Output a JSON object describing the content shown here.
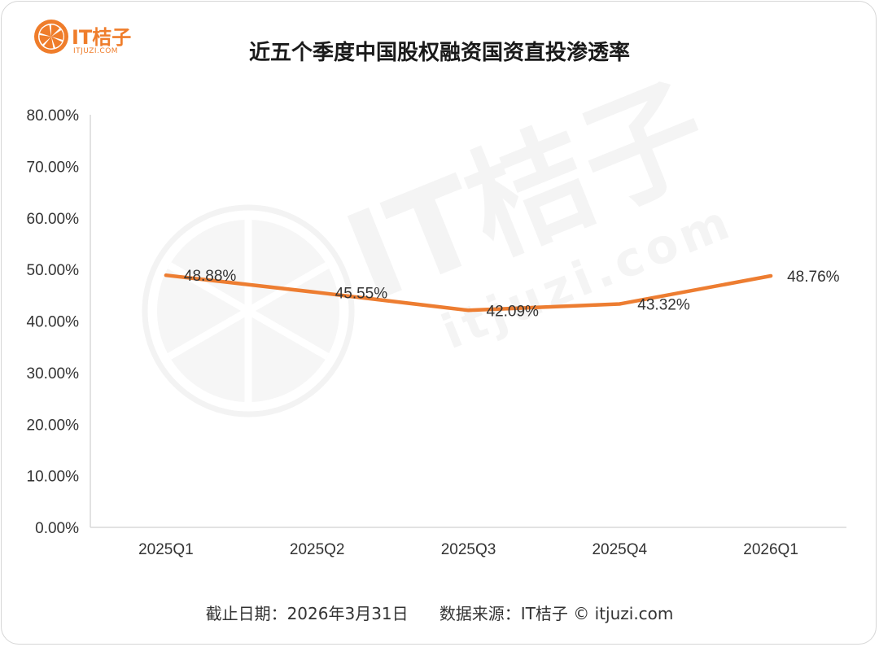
{
  "logo": {
    "brand": "IT桔子",
    "url": "ITJUZI.COM",
    "watermark_brand": "IT桔子",
    "watermark_url": "itjuzi.com",
    "color": "#ef7d2b"
  },
  "footer": {
    "date_text": "截止日期：2026年3月31日",
    "source_text": "数据来源：IT桔子 © itjuzi.com"
  },
  "chart_data": {
    "type": "line",
    "title": "近五个季度中国股权融资国资直投渗透率",
    "categories": [
      "2025Q1",
      "2025Q2",
      "2025Q3",
      "2025Q4",
      "2026Q1"
    ],
    "values": [
      48.88,
      45.55,
      42.09,
      43.32,
      48.76
    ],
    "data_labels": [
      "48.88%",
      "45.55%",
      "42.09%",
      "43.32%",
      "48.76%"
    ],
    "ylim": [
      0,
      80
    ],
    "yticks": [
      "0.00%",
      "10.00%",
      "20.00%",
      "30.00%",
      "40.00%",
      "50.00%",
      "60.00%",
      "70.00%",
      "80.00%"
    ],
    "line_color": "#ed7d31",
    "grid": false
  }
}
